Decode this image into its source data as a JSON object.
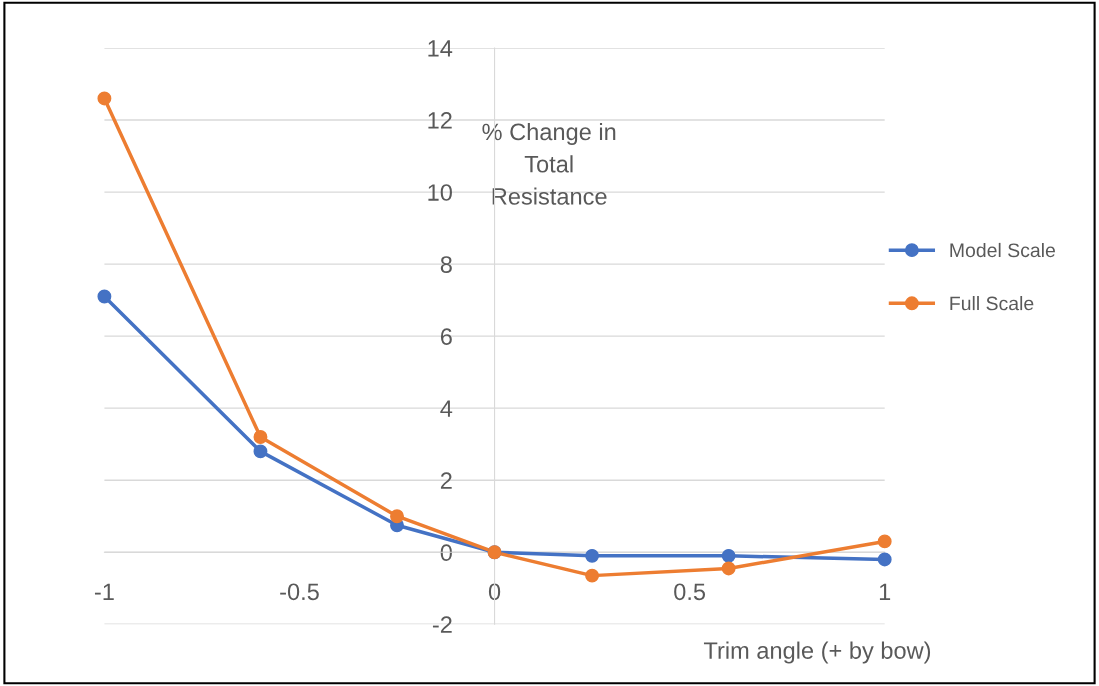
{
  "chart_data": {
    "type": "line",
    "xlabel": "Trim angle (+ by bow)",
    "ylabel": "% Change in\nTotal\nResistance",
    "x": [
      -1,
      -0.6,
      -0.25,
      0,
      0.25,
      0.6,
      1
    ],
    "series": [
      {
        "name": "Model Scale",
        "color": "#4472c4",
        "values": [
          7.1,
          2.8,
          0.75,
          0,
          -0.1,
          -0.1,
          -0.2
        ]
      },
      {
        "name": "Full Scale",
        "color": "#ed7d31",
        "values": [
          12.6,
          3.2,
          1.0,
          0,
          -0.65,
          -0.45,
          0.3
        ]
      }
    ],
    "xlim": [
      -1,
      1
    ],
    "xticks": [
      -1,
      -0.5,
      0,
      0.5,
      1
    ],
    "ylim": [
      -2,
      14
    ],
    "yticks": [
      -2,
      0,
      2,
      4,
      6,
      8,
      10,
      12,
      14
    ],
    "grid": "y",
    "legend": "right",
    "marker": "circle",
    "line_style": "solid"
  }
}
